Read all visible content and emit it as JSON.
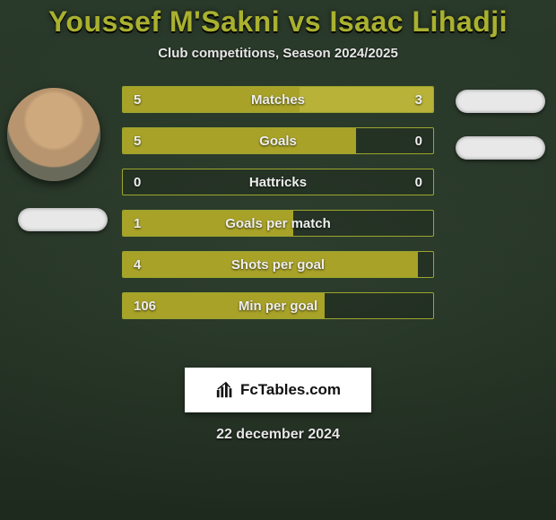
{
  "title": "Youssef M'Sakni vs Isaac Lihadji",
  "subtitle": "Club competitions, Season 2024/2025",
  "date": "22 december 2024",
  "watermark_text": "FcTables.com",
  "colors": {
    "accent": "#aab12f",
    "bar_fill": "#a8a228",
    "bar_fill_alt": "#b8b238",
    "bar_border": "#aab12f",
    "text": "#eeeeee",
    "bg_top": "#2a3a2a",
    "bg_bottom": "#1e2a1e"
  },
  "bars": [
    {
      "label": "Matches",
      "left": "5",
      "right": "3",
      "left_pct": 57,
      "right_pct": 43
    },
    {
      "label": "Goals",
      "left": "5",
      "right": "0",
      "left_pct": 75,
      "right_pct": 0
    },
    {
      "label": "Hattricks",
      "left": "0",
      "right": "0",
      "left_pct": 0,
      "right_pct": 0
    },
    {
      "label": "Goals per match",
      "left": "1",
      "right": "",
      "left_pct": 55,
      "right_pct": 0
    },
    {
      "label": "Shots per goal",
      "left": "4",
      "right": "",
      "left_pct": 95,
      "right_pct": 0
    },
    {
      "label": "Min per goal",
      "left": "106",
      "right": "",
      "left_pct": 65,
      "right_pct": 0
    }
  ]
}
